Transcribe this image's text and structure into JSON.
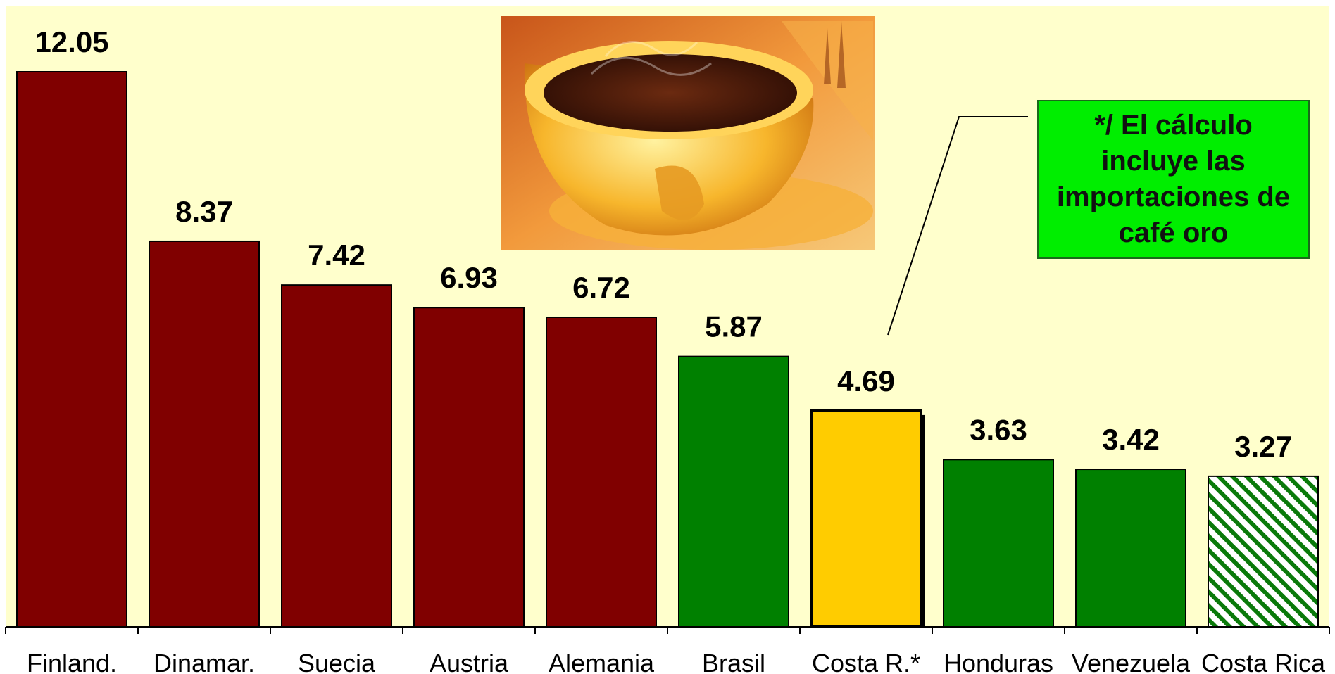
{
  "chart_data": {
    "type": "bar",
    "title": "",
    "xlabel": "",
    "ylabel": "",
    "ylim": [
      0,
      12.6
    ],
    "grid": false,
    "legend": "none",
    "categories": [
      "Finland.",
      "Dinamar.",
      "Suecia",
      "Austria",
      "Alemania",
      "Brasil",
      "Costa R.*",
      "Honduras",
      "Venezuela",
      "Costa Rica"
    ],
    "values": [
      12.05,
      8.37,
      7.42,
      6.93,
      6.72,
      5.87,
      4.69,
      3.63,
      3.42,
      3.27
    ],
    "value_labels": [
      "12.05",
      "8.37",
      "7.42",
      "6.93",
      "6.72",
      "5.87",
      "4.69",
      "3.63",
      "3.42",
      "3.27"
    ],
    "bar_styles": [
      "dark-red",
      "dark-red",
      "dark-red",
      "dark-red",
      "dark-red",
      "green",
      "yellow",
      "green",
      "green",
      "green-hatched"
    ],
    "annotation": {
      "text": "*/ El cálculo incluye las importaciones de café oro",
      "points_to": "Costa R.*"
    },
    "image": "coffee-cup-photo"
  },
  "colors": {
    "background": "#ffffcc",
    "dark-red": "#800000",
    "green": "#008000",
    "yellow": "#ffcc00",
    "hatch": "#0a7a0a",
    "note_fill": "#00ee00"
  }
}
